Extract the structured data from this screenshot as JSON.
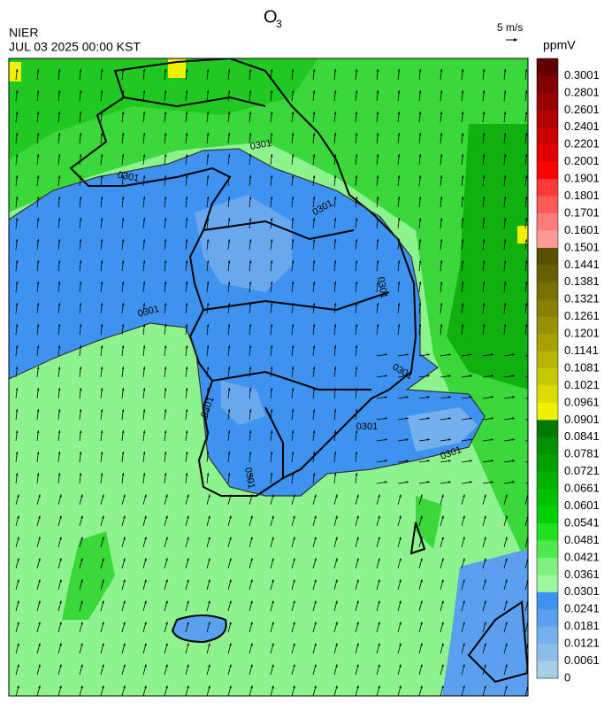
{
  "header": {
    "title": "O",
    "title_subscript": "3",
    "agency": "NIER",
    "datetime": "JUL 03 2025 00:00 KST",
    "wind_scale": "5 m/s",
    "unit": "ppmV"
  },
  "map": {
    "contour_labels": [
      "0301",
      "0301",
      "0301",
      "0301",
      "0301",
      "0301",
      "0301",
      "0301",
      "0301",
      "0301"
    ]
  },
  "colorbar": {
    "labels": [
      "0.3001",
      "0.2801",
      "0.2601",
      "0.2401",
      "0.2201",
      "0.2001",
      "0.1901",
      "0.1801",
      "0.1701",
      "0.1601",
      "0.1501",
      "0.1441",
      "0.1381",
      "0.1321",
      "0.1261",
      "0.1201",
      "0.1141",
      "0.1081",
      "0.1021",
      "0.0961",
      "0.0901",
      "0.0841",
      "0.0781",
      "0.0721",
      "0.0661",
      "0.0601",
      "0.0541",
      "0.0481",
      "0.0421",
      "0.0361",
      "0.0301",
      "0.0241",
      "0.0181",
      "0.0121",
      "0.0061",
      "0"
    ],
    "colors": [
      "#600000",
      "#800000",
      "#980000",
      "#b00000",
      "#c80000",
      "#e00000",
      "#ff0000",
      "#ff3a3a",
      "#ff5a5a",
      "#ff7a7a",
      "#ff9a9a",
      "#585000",
      "#686000",
      "#787000",
      "#888000",
      "#989000",
      "#a8a000",
      "#b8b400",
      "#c8c800",
      "#dcdc00",
      "#f0f000",
      "#007800",
      "#009000",
      "#00a000",
      "#00b000",
      "#00c000",
      "#00d000",
      "#20e020",
      "#50e850",
      "#80f080",
      "#a0f5a0",
      "#3f93f0",
      "#5aa0ee",
      "#73b0ec",
      "#8cbde8",
      "#a6cfe8"
    ]
  }
}
